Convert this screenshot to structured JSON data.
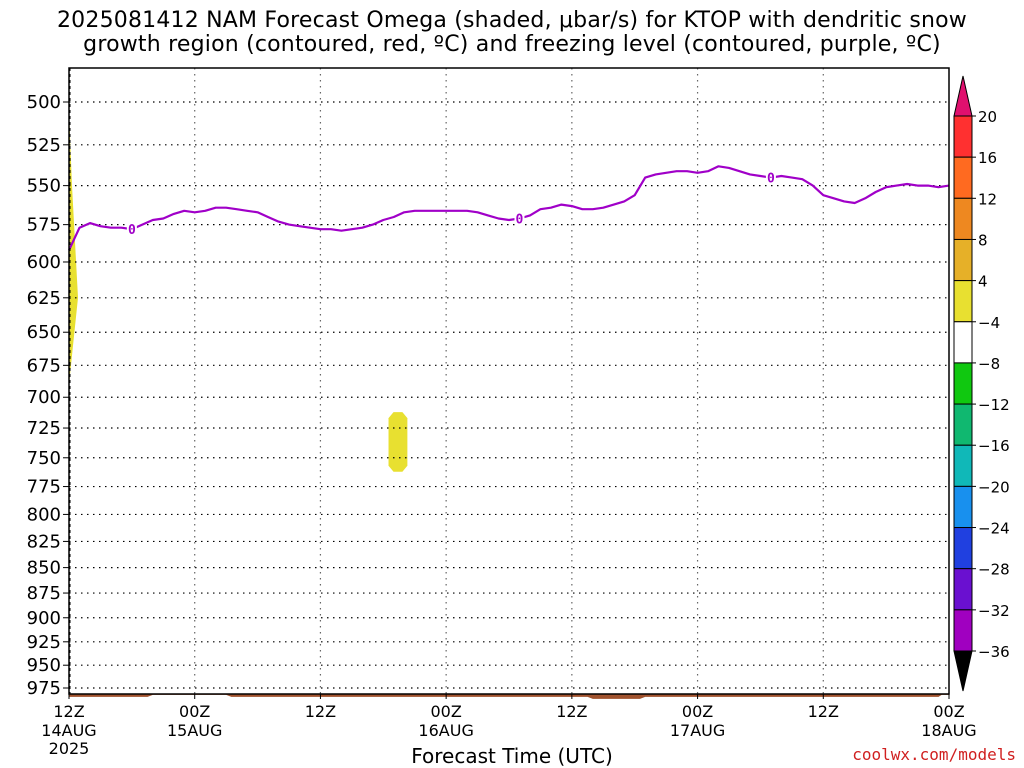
{
  "chart_data": {
    "type": "heatmap",
    "title": "2025081412 NAM Forecast Omega (shaded, μbar/s) for KTOP with dendritic snow",
    "subtitle": "growth region (contoured, red, ºC) and freezing level (contoured, purple, ºC)",
    "xlabel": "Forecast Time (UTC)",
    "ylabel": "",
    "x_ticks": [
      {
        "hour": 0,
        "top": "12Z",
        "mid": "14AUG",
        "bot": "2025"
      },
      {
        "hour": 12,
        "top": "00Z",
        "mid": "15AUG",
        "bot": ""
      },
      {
        "hour": 24,
        "top": "12Z",
        "mid": "",
        "bot": ""
      },
      {
        "hour": 36,
        "top": "00Z",
        "mid": "16AUG",
        "bot": ""
      },
      {
        "hour": 48,
        "top": "12Z",
        "mid": "",
        "bot": ""
      },
      {
        "hour": 60,
        "top": "00Z",
        "mid": "17AUG",
        "bot": ""
      },
      {
        "hour": 72,
        "top": "12Z",
        "mid": "",
        "bot": ""
      },
      {
        "hour": 84,
        "top": "00Z",
        "mid": "18AUG",
        "bot": ""
      }
    ],
    "xlim": [
      0,
      84
    ],
    "y_ticks": [
      500,
      525,
      550,
      575,
      600,
      625,
      650,
      675,
      700,
      725,
      750,
      775,
      800,
      825,
      850,
      875,
      900,
      925,
      950,
      975
    ],
    "ylim_hPa": [
      475,
      990
    ],
    "y_scale": "log-pressure (reversed)",
    "grid": true,
    "freezing_level": {
      "label": "0",
      "label_hours": [
        6,
        43,
        67
      ],
      "hours": [
        0,
        1,
        2,
        3,
        4,
        5,
        6,
        7,
        8,
        9,
        10,
        11,
        12,
        13,
        14,
        15,
        16,
        17,
        18,
        19,
        20,
        21,
        22,
        23,
        24,
        25,
        26,
        27,
        28,
        29,
        30,
        31,
        32,
        33,
        34,
        35,
        36,
        37,
        38,
        39,
        40,
        41,
        42,
        43,
        44,
        45,
        46,
        47,
        48,
        49,
        50,
        51,
        52,
        53,
        54,
        55,
        56,
        57,
        58,
        59,
        60,
        61,
        62,
        63,
        64,
        65,
        66,
        67,
        68,
        69,
        70,
        71,
        72,
        73,
        74,
        75,
        76,
        77,
        78,
        79,
        80,
        81,
        82,
        83,
        84
      ],
      "pressure_hPa": [
        592,
        577,
        574,
        576,
        577,
        577,
        578,
        575,
        572,
        571,
        568,
        566,
        567,
        566,
        564,
        564,
        565,
        566,
        567,
        570,
        573,
        575,
        576,
        577,
        578,
        578,
        579,
        578,
        577,
        575,
        572,
        570,
        567,
        566,
        566,
        566,
        566,
        566,
        566,
        567,
        569,
        571,
        572,
        571,
        569,
        565,
        564,
        562,
        563,
        565,
        565,
        564,
        562,
        560,
        556,
        545,
        543,
        542,
        541,
        541,
        542,
        541,
        538,
        539,
        541,
        543,
        544,
        545,
        544,
        545,
        546,
        550,
        556,
        558,
        560,
        561,
        558,
        554,
        551,
        550,
        549,
        550,
        550,
        551,
        550
      ]
    },
    "omega_regions": [
      {
        "name": "edge",
        "value_range": [
          4,
          8
        ],
        "hours_range": [
          0,
          1
        ],
        "pressure_range": [
          505,
          690
        ]
      },
      {
        "name": "blob",
        "value_range": [
          4,
          8
        ],
        "hours_range": [
          30.5,
          32.3
        ],
        "pressure_range": [
          712,
          762
        ]
      }
    ],
    "terrain": {
      "color": "#a0522d",
      "pressure_hPa": 986
    },
    "colorbar": {
      "levels": [
        20,
        16,
        12,
        8,
        4,
        -4,
        -8,
        -12,
        -16,
        -20,
        -24,
        -28,
        -32,
        -36
      ],
      "colors": [
        "#e0106e",
        "#ff3030",
        "#ff6a20",
        "#ee8820",
        "#e6b028",
        "#e8e030",
        "#ffffff",
        "#10c810",
        "#10b870",
        "#10b8b8",
        "#1890ee",
        "#2040e0",
        "#6a10d0",
        "#a000c0",
        "#a0a0a0",
        "#000000"
      ]
    }
  },
  "footer": {
    "credit": "coolwx.com/models"
  }
}
